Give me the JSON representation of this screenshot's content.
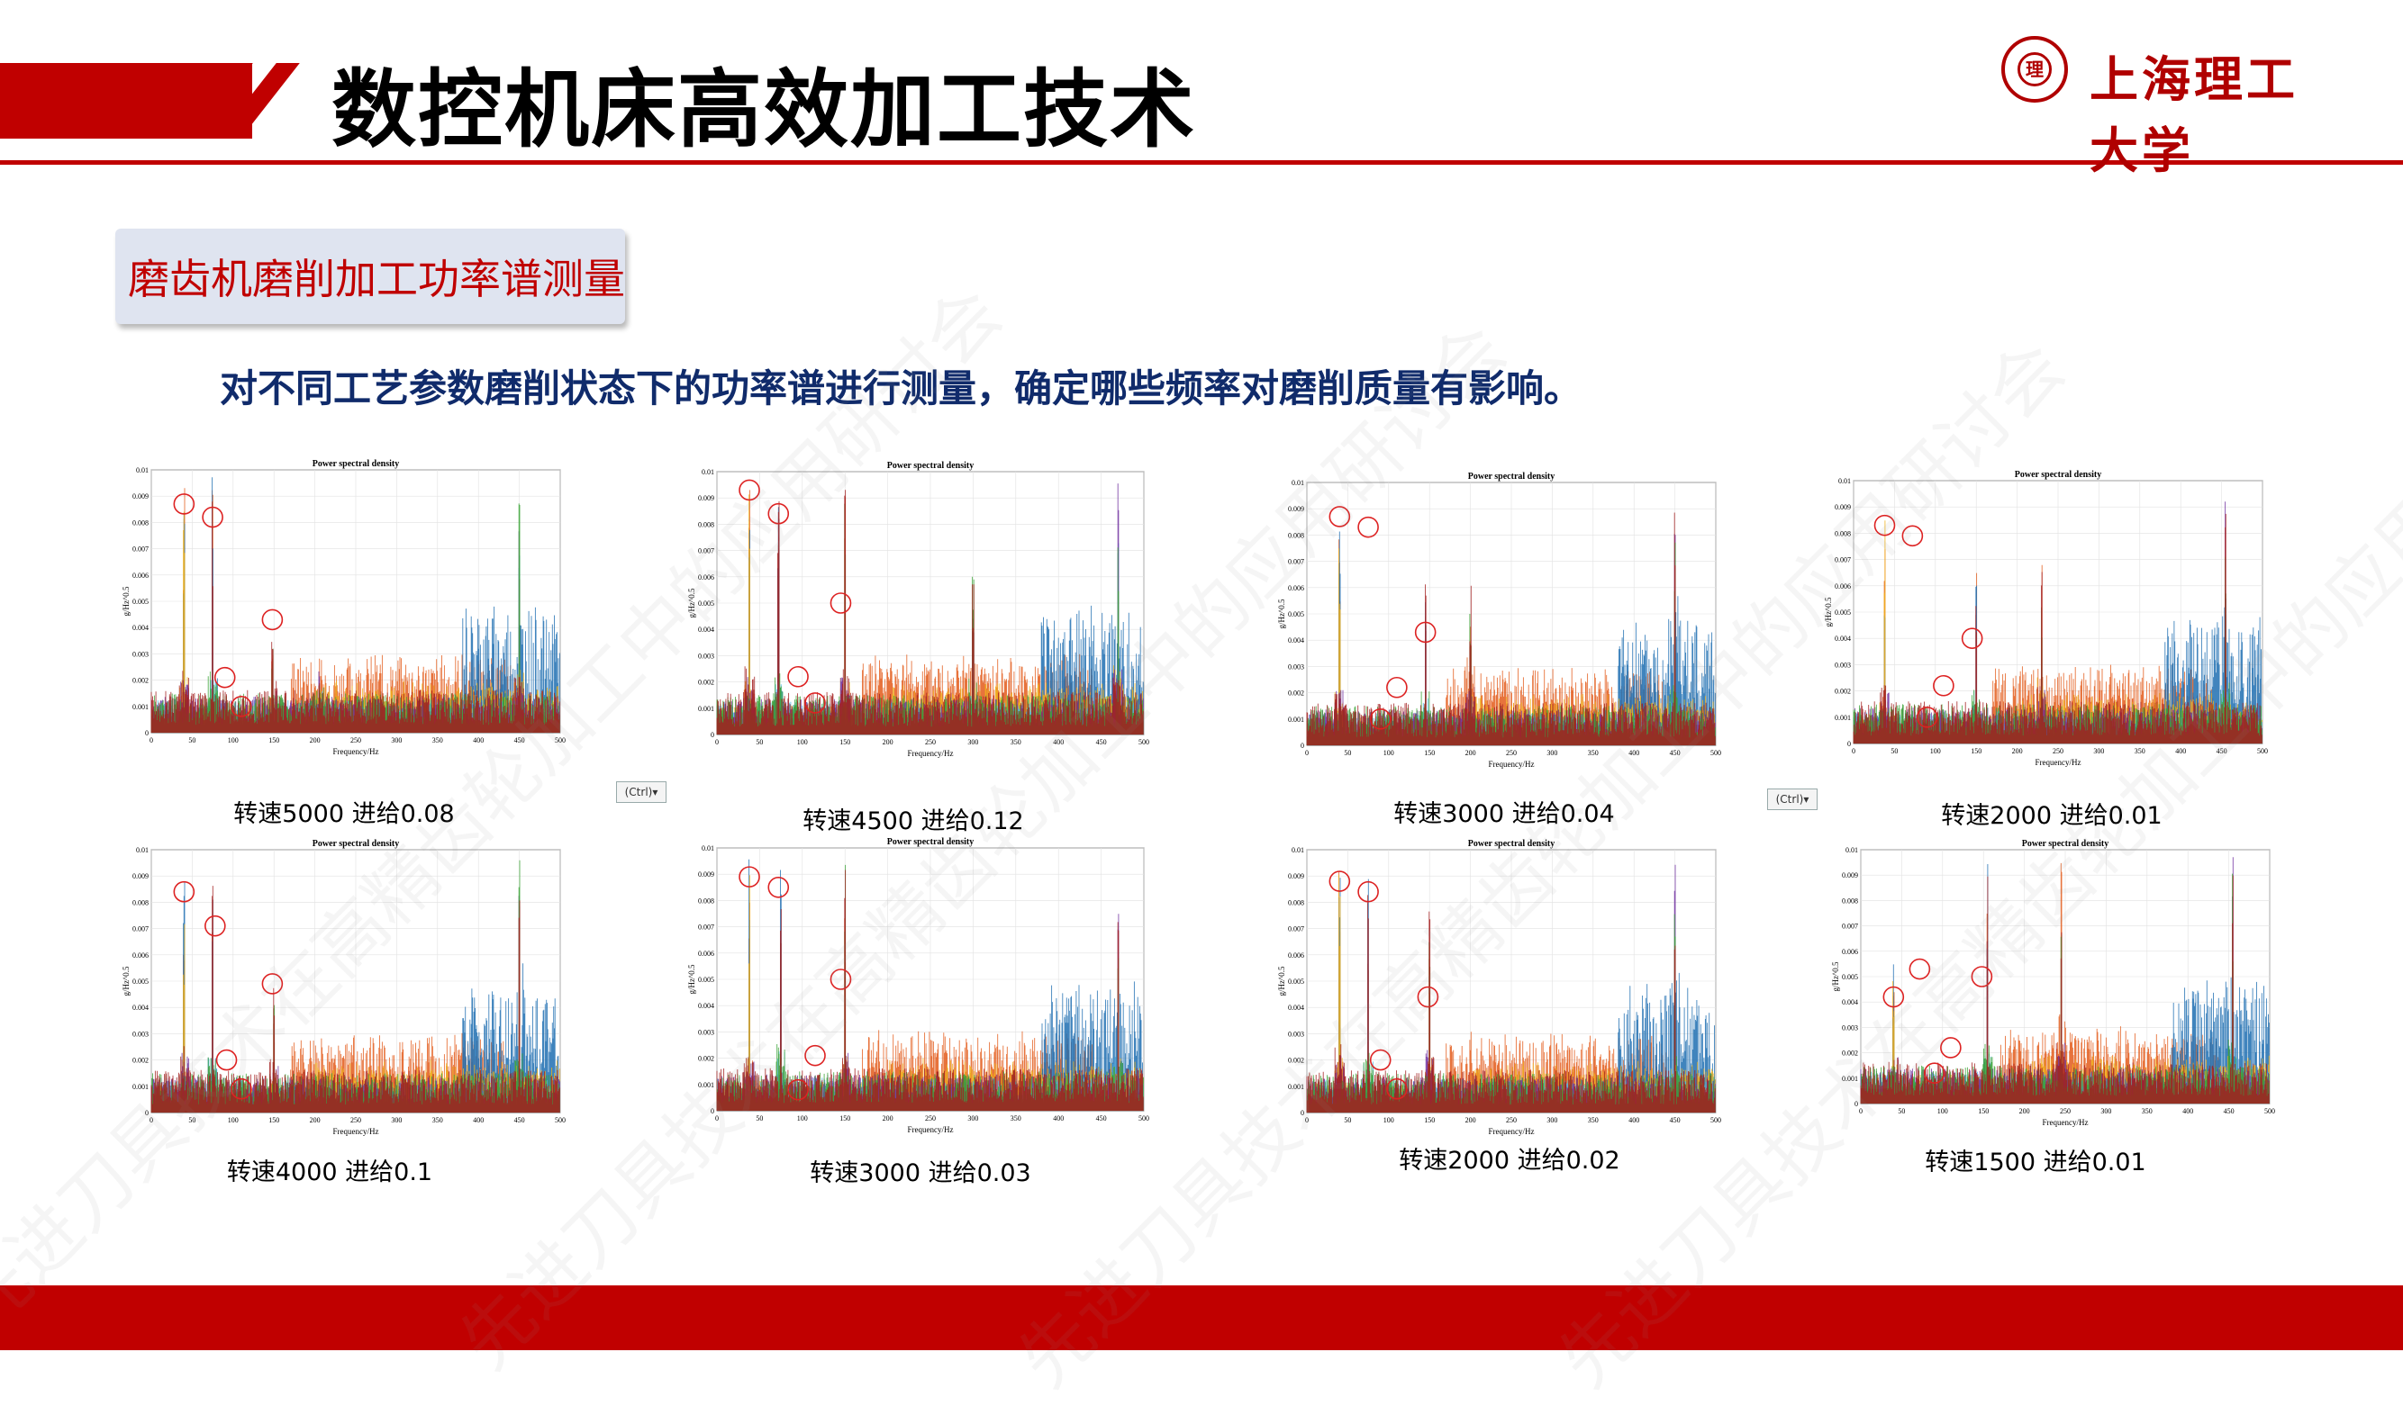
{
  "header": {
    "title": "数控机床高效加工技术",
    "logo_text": "上海理工大学",
    "colors": {
      "brand_red": "#c00000",
      "subtitle_blue": "#102b6b"
    }
  },
  "section": {
    "label": "磨齿机磨削加工功率谱测量"
  },
  "subtitle": "对不同工艺参数磨削状态下的功率谱进行测量，确定哪些频率对磨削质量有影响。",
  "watermark_text": "先进刀具技术在高精齿轮加工中的应用研讨会",
  "ctrl_label": "(Ctrl)▾",
  "chart_data": [
    {
      "type": "line",
      "title": "Power spectral density",
      "xlabel": "Frequency/Hz",
      "ylabel": "g/Hz^0.5",
      "xlim": [
        0,
        500
      ],
      "ylim": [
        0,
        0.01
      ],
      "xticks": [
        "0",
        "50",
        "100",
        "150",
        "200",
        "250",
        "300",
        "350",
        "400",
        "450",
        "500"
      ],
      "yticks": [
        "0.001",
        "0.002",
        "0.003",
        "0.004",
        "0.005",
        "0.006",
        "0.007",
        "0.008",
        "0.009",
        "0.01"
      ],
      "caption": "转速5000 进给0.08",
      "peaks": [
        [
          40,
          0.0095
        ],
        [
          75,
          0.0098
        ],
        [
          148,
          0.0043
        ],
        [
          205,
          0.0028
        ],
        [
          450,
          0.009
        ]
      ],
      "circles": [
        [
          40,
          0.0087
        ],
        [
          75,
          0.0082
        ],
        [
          90,
          0.0021
        ],
        [
          110,
          0.001
        ],
        [
          148,
          0.0043
        ]
      ]
    },
    {
      "type": "line",
      "title": "Power spectral density",
      "xlabel": "Frequency/Hz",
      "ylabel": "g/Hz^0.5",
      "xlim": [
        0,
        500
      ],
      "ylim": [
        0,
        0.01
      ],
      "xticks": [
        "0",
        "50",
        "100",
        "150",
        "200",
        "250",
        "300",
        "350",
        "400",
        "450",
        "500"
      ],
      "yticks": [
        "0.001",
        "0.002",
        "0.003",
        "0.004",
        "0.005",
        "0.006",
        "0.007",
        "0.008",
        "0.009",
        "0.01"
      ],
      "caption": "转速4500 进给0.12",
      "peaks": [
        [
          38,
          0.01
        ],
        [
          72,
          0.0098
        ],
        [
          150,
          0.01
        ],
        [
          300,
          0.0068
        ],
        [
          470,
          0.0098
        ]
      ],
      "circles": [
        [
          38,
          0.0093
        ],
        [
          72,
          0.0084
        ],
        [
          95,
          0.0022
        ],
        [
          115,
          0.0012
        ],
        [
          145,
          0.005
        ]
      ]
    },
    {
      "type": "line",
      "title": "Power spectral density",
      "xlabel": "Frequency/Hz",
      "ylabel": "g/Hz^0.5",
      "xlim": [
        0,
        500
      ],
      "ylim": [
        0,
        0.01
      ],
      "xticks": [
        "0",
        "50",
        "100",
        "150",
        "200",
        "250",
        "300",
        "350",
        "400",
        "450",
        "500"
      ],
      "yticks": [
        "0.001",
        "0.002",
        "0.003",
        "0.004",
        "0.005",
        "0.006",
        "0.007",
        "0.008",
        "0.009",
        "0.01"
      ],
      "caption": "转速3000 进给0.04",
      "peaks": [
        [
          40,
          0.0092
        ],
        [
          145,
          0.0062
        ],
        [
          200,
          0.0068
        ],
        [
          450,
          0.0098
        ]
      ],
      "circles": [
        [
          40,
          0.0087
        ],
        [
          75,
          0.0083
        ],
        [
          90,
          0.001
        ],
        [
          110,
          0.0022
        ],
        [
          145,
          0.0043
        ]
      ]
    },
    {
      "type": "line",
      "title": "Power spectral density",
      "xlabel": "Frequency/Hz",
      "ylabel": "g/Hz^0.5",
      "xlim": [
        0,
        500
      ],
      "ylim": [
        0,
        0.01
      ],
      "xticks": [
        "0",
        "50",
        "100",
        "150",
        "200",
        "250",
        "300",
        "350",
        "400",
        "450",
        "500"
      ],
      "yticks": [
        "0.001",
        "0.002",
        "0.003",
        "0.004",
        "0.005",
        "0.006",
        "0.007",
        "0.008",
        "0.009",
        "0.01"
      ],
      "caption": "转速2000 进给0.01",
      "peaks": [
        [
          38,
          0.0085
        ],
        [
          150,
          0.0072
        ],
        [
          230,
          0.0072
        ],
        [
          455,
          0.0098
        ]
      ],
      "circles": [
        [
          38,
          0.0083
        ],
        [
          72,
          0.0079
        ],
        [
          90,
          0.001
        ],
        [
          110,
          0.0022
        ],
        [
          145,
          0.004
        ]
      ]
    },
    {
      "type": "line",
      "title": "Power spectral density",
      "xlabel": "Frequency/Hz",
      "ylabel": "g/Hz^0.5",
      "xlim": [
        0,
        500
      ],
      "ylim": [
        0,
        0.01
      ],
      "xticks": [
        "0",
        "50",
        "100",
        "150",
        "200",
        "250",
        "300",
        "350",
        "400",
        "450",
        "500"
      ],
      "yticks": [
        "0.001",
        "0.002",
        "0.003",
        "0.004",
        "0.005",
        "0.006",
        "0.007",
        "0.008",
        "0.009",
        "0.01"
      ],
      "caption": "转速4000 进给0.1",
      "peaks": [
        [
          40,
          0.0088
        ],
        [
          75,
          0.0098
        ],
        [
          150,
          0.0048
        ],
        [
          450,
          0.0098
        ]
      ],
      "circles": [
        [
          40,
          0.0084
        ],
        [
          78,
          0.0071
        ],
        [
          92,
          0.002
        ],
        [
          110,
          0.0009
        ],
        [
          148,
          0.0049
        ]
      ]
    },
    {
      "type": "line",
      "title": "Power spectral density",
      "xlabel": "Frequency/Hz",
      "ylabel": "g/Hz^0.5",
      "xlim": [
        0,
        500
      ],
      "ylim": [
        0,
        0.01
      ],
      "xticks": [
        "0",
        "50",
        "100",
        "150",
        "200",
        "250",
        "300",
        "350",
        "400",
        "450",
        "500"
      ],
      "yticks": [
        "0.001",
        "0.002",
        "0.003",
        "0.004",
        "0.005",
        "0.006",
        "0.007",
        "0.008",
        "0.009",
        "0.01"
      ],
      "caption": "转速3000 进给0.03",
      "peaks": [
        [
          38,
          0.0098
        ],
        [
          75,
          0.0095
        ],
        [
          150,
          0.0095
        ],
        [
          470,
          0.0098
        ]
      ],
      "circles": [
        [
          38,
          0.0089
        ],
        [
          72,
          0.0085
        ],
        [
          95,
          0.0008
        ],
        [
          115,
          0.0021
        ],
        [
          145,
          0.005
        ]
      ]
    },
    {
      "type": "line",
      "title": "Power spectral density",
      "xlabel": "Frequency/Hz",
      "ylabel": "g/Hz^0.5",
      "xlim": [
        0,
        500
      ],
      "ylim": [
        0,
        0.01
      ],
      "xticks": [
        "0",
        "50",
        "100",
        "150",
        "200",
        "250",
        "300",
        "350",
        "400",
        "450",
        "500"
      ],
      "yticks": [
        "0.001",
        "0.002",
        "0.003",
        "0.004",
        "0.005",
        "0.006",
        "0.007",
        "0.008",
        "0.009",
        "0.01"
      ],
      "caption": "转速2000 进给0.02",
      "peaks": [
        [
          40,
          0.0095
        ],
        [
          75,
          0.0098
        ],
        [
          150,
          0.0095
        ],
        [
          450,
          0.0098
        ]
      ],
      "circles": [
        [
          40,
          0.0088
        ],
        [
          75,
          0.0084
        ],
        [
          90,
          0.002
        ],
        [
          110,
          0.0009
        ],
        [
          148,
          0.0044
        ]
      ]
    },
    {
      "type": "line",
      "title": "Power spectral density",
      "xlabel": "Frequency/Hz",
      "ylabel": "g/Hz^0.5",
      "xlim": [
        0,
        500
      ],
      "ylim": [
        0,
        0.01
      ],
      "xticks": [
        "0",
        "50",
        "100",
        "150",
        "200",
        "250",
        "300",
        "350",
        "400",
        "450",
        "500"
      ],
      "yticks": [
        "0.001",
        "0.002",
        "0.003",
        "0.004",
        "0.005",
        "0.006",
        "0.007",
        "0.008",
        "0.009",
        "0.01"
      ],
      "caption": "转速1500 进给0.01",
      "peaks": [
        [
          40,
          0.0058
        ],
        [
          155,
          0.0098
        ],
        [
          245,
          0.0098
        ],
        [
          455,
          0.0098
        ]
      ],
      "circles": [
        [
          40,
          0.0042
        ],
        [
          72,
          0.0053
        ],
        [
          90,
          0.0012
        ],
        [
          110,
          0.0022
        ],
        [
          148,
          0.005
        ]
      ]
    }
  ]
}
